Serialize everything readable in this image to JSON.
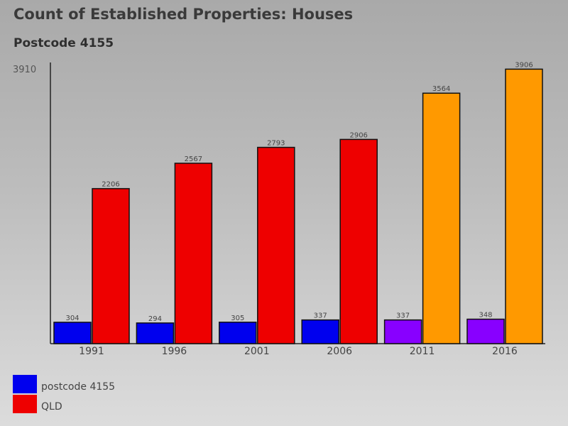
{
  "chart_data": {
    "type": "bar",
    "title": "Count of Established Properties: Houses",
    "subtitle": "Postcode 4155",
    "categories": [
      "1991",
      "1996",
      "2001",
      "2006",
      "2011",
      "2016"
    ],
    "series": [
      {
        "name": "postcode 4155",
        "color": "#0000ee",
        "values": [
          304,
          294,
          305,
          337,
          337,
          348
        ],
        "point_colors": [
          "#0000ee",
          "#0000ee",
          "#0000ee",
          "#0000ee",
          "#8800ff",
          "#8800ff"
        ]
      },
      {
        "name": "QLD",
        "color": "#ee0000",
        "values": [
          2206,
          2567,
          2793,
          2906,
          3564,
          3906
        ],
        "point_colors": [
          "#ee0000",
          "#ee0000",
          "#ee0000",
          "#ee0000",
          "#ff9900",
          "#ff9900"
        ]
      }
    ],
    "ymax_label": "3910",
    "ylim": [
      0,
      3910
    ]
  }
}
